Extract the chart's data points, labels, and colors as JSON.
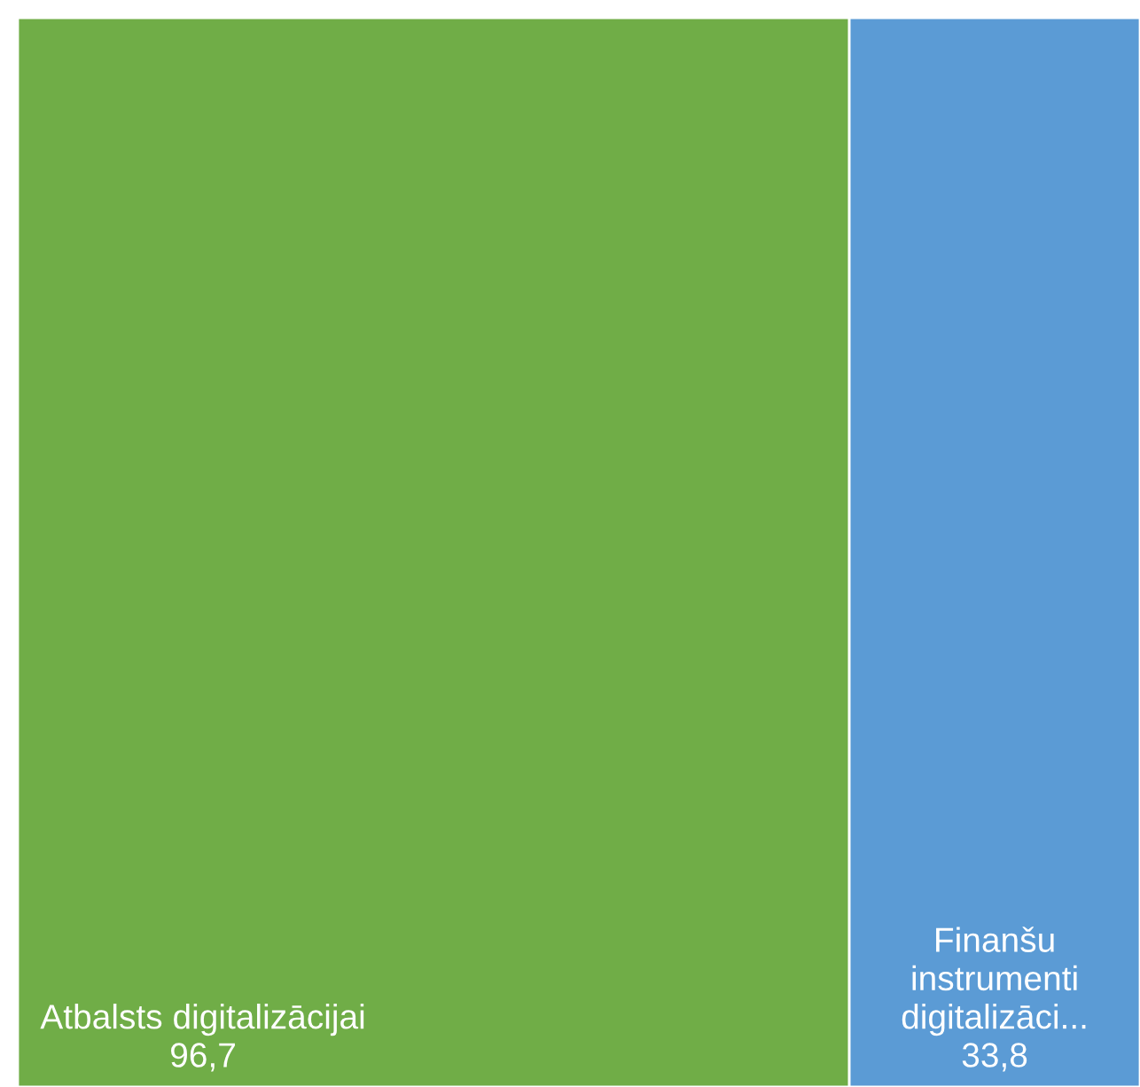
{
  "chart_data": {
    "type": "other",
    "categories": [
      "Atbalsts digitalizācijai",
      "Finanšu instrumenti digitalizāci..."
    ],
    "values": [
      96.7,
      33.8
    ],
    "value_labels": [
      "96,7",
      "33,8"
    ],
    "colors": [
      "#70ad47",
      "#5b9bd5"
    ]
  }
}
